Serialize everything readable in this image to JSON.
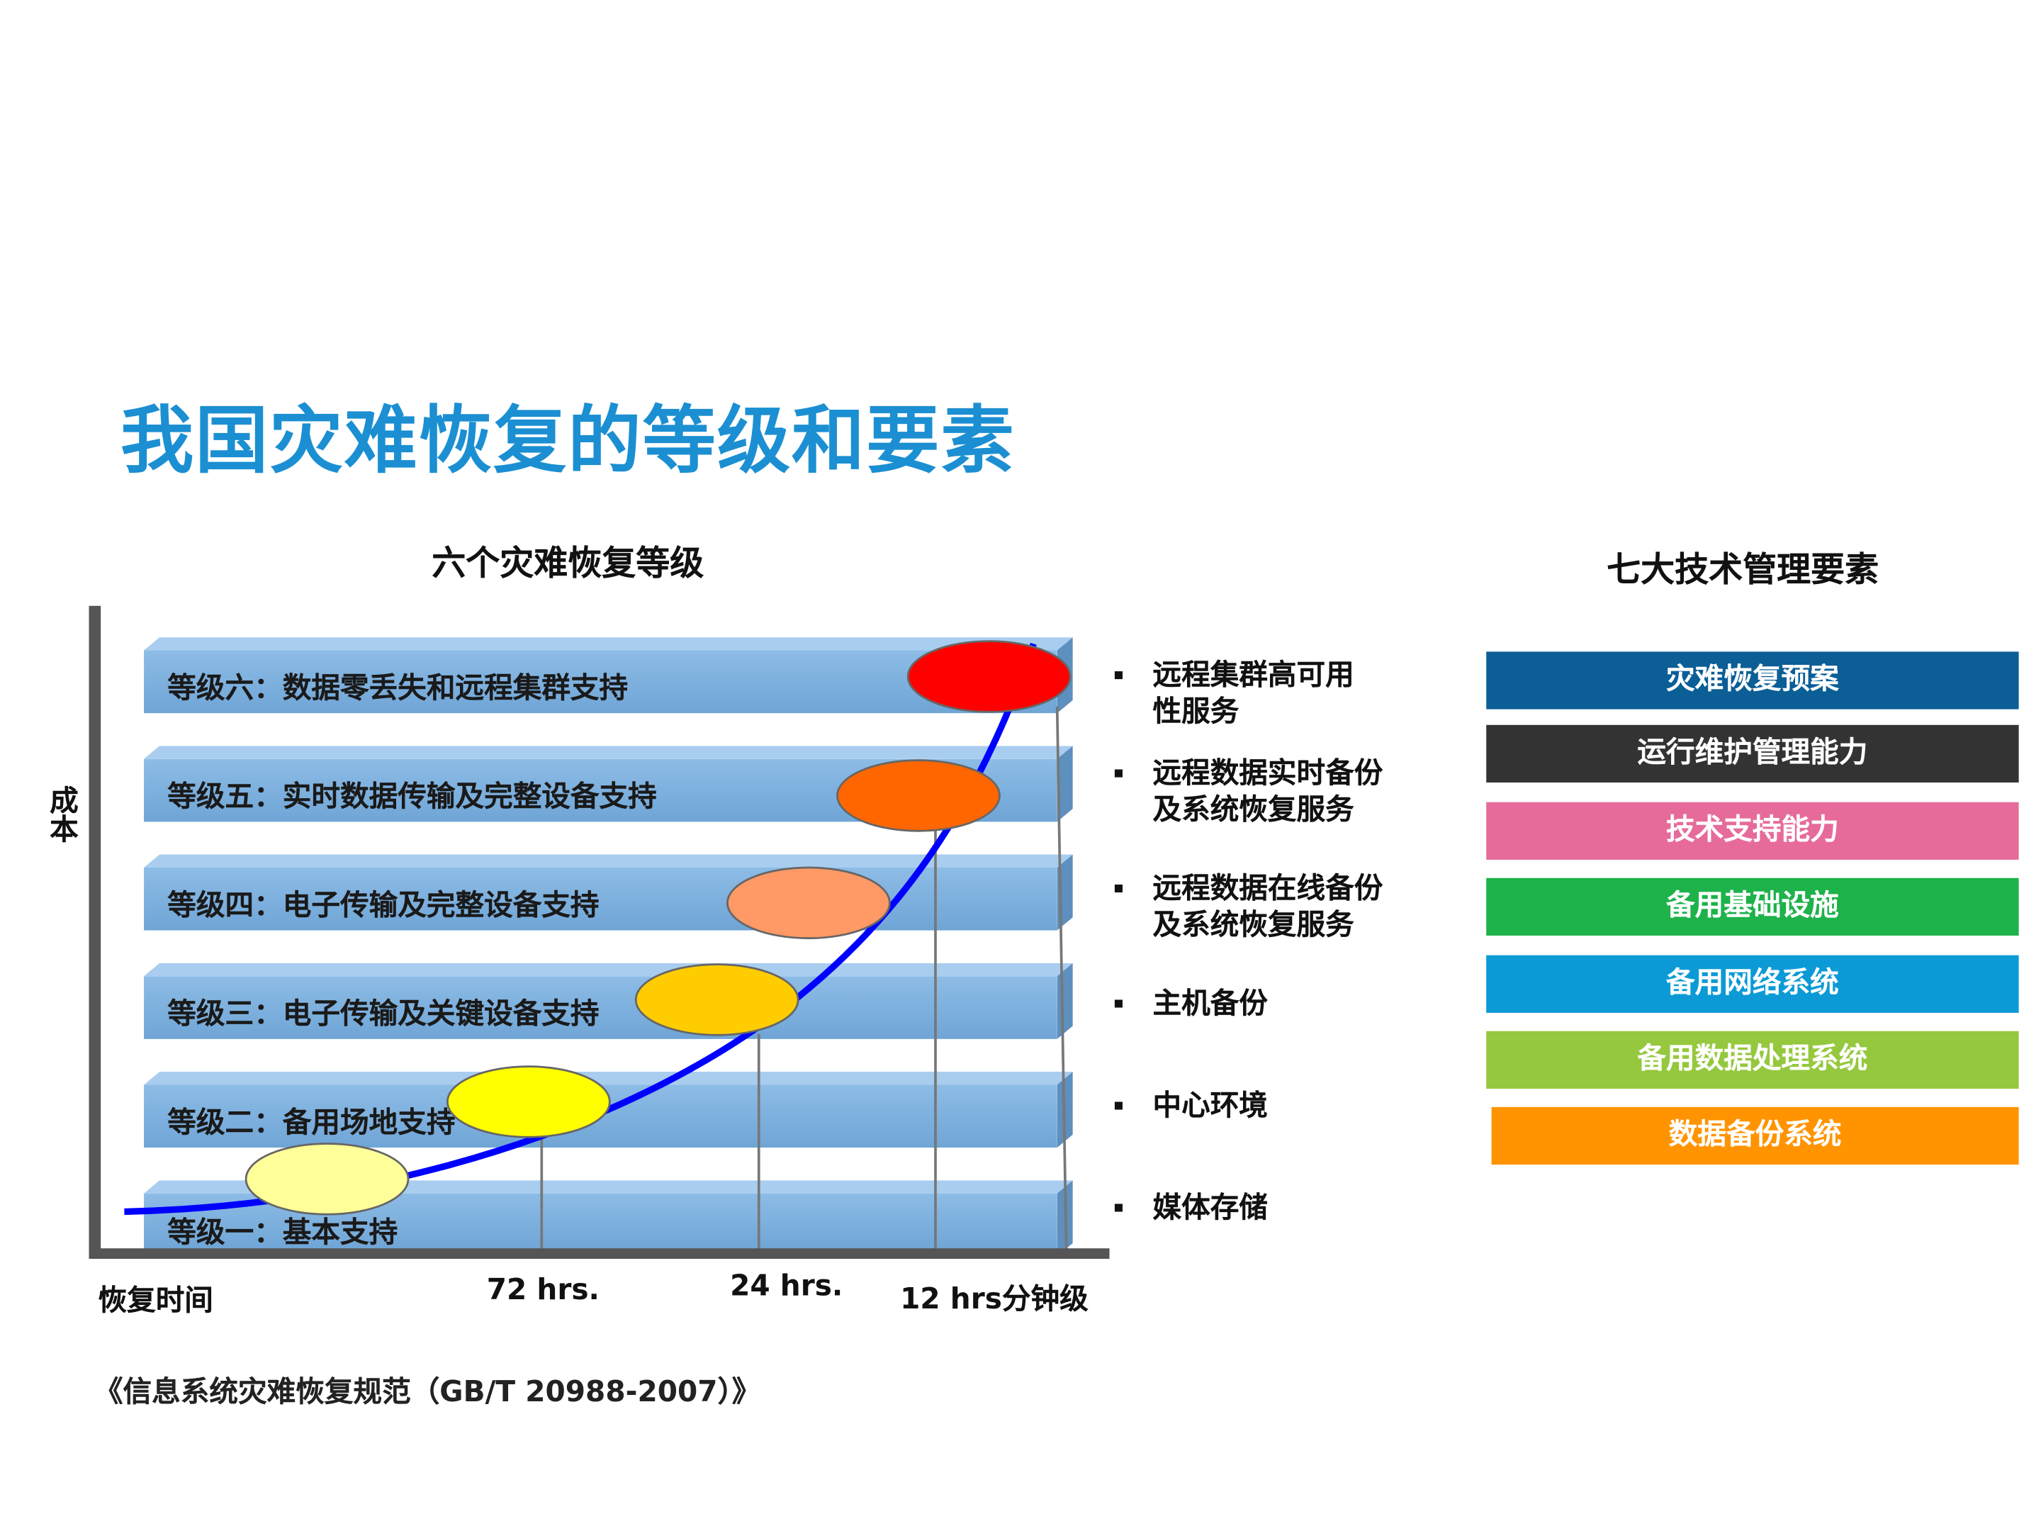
{
  "title": "我国灾难恢复的等级和要素",
  "left_heading": "六个灾难恢复等级",
  "right_heading": "七大技术管理要素",
  "y_axis_label": "成本",
  "x_axis_labels": [
    "恢复时间",
    "72 hrs.",
    "24 hrs.",
    "12 hrs分钟级"
  ],
  "levels": [
    {
      "label": "等级六：数据零丢失和远程集群支持",
      "color": "#ff0000"
    },
    {
      "label": "等级五：实时数据传输及完整设备支持",
      "color": "#ff6600"
    },
    {
      "label": "等级四：电子传输及完整设备支持",
      "color": "#ff9966"
    },
    {
      "label": "等级三：电子传输及关键设备支持",
      "color": "#ffcc00"
    },
    {
      "label": "等级二：备用场地支持",
      "color": "#ffff00"
    },
    {
      "label": "等级一：基本支持",
      "color": "#ffff99"
    }
  ],
  "curve_color": "#0000ff",
  "services": [
    "远程集群高可用\n性服务",
    "远程数据实时备份\n及系统恢复服务",
    "远程数据在线备份\n及系统恢复服务",
    "主机备份",
    "中心环境",
    "媒体存储"
  ],
  "elements": [
    {
      "label": "灾难恢复预案",
      "color": "#0b5e96"
    },
    {
      "label": "运行维护管理能力",
      "color": "#333333"
    },
    {
      "label": "技术支持能力",
      "color": "#e66b9b"
    },
    {
      "label": "备用基础设施",
      "color": "#1eb24b"
    },
    {
      "label": "备用网络系统",
      "color": "#0b9ad6"
    },
    {
      "label": "备用数据处理系统",
      "color": "#95c83e"
    },
    {
      "label": "数据备份系统",
      "color": "#ff9400"
    }
  ],
  "footer": "《信息系统灾难恢复规范（GB/T 20988-2007）》"
}
